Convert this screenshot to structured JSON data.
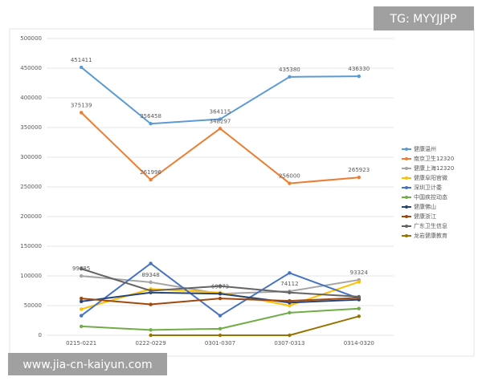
{
  "chart_data": {
    "type": "line",
    "categories": [
      "0215-0221",
      "0222-0229",
      "0301-0307",
      "0307-0313",
      "0314-0320"
    ],
    "ylim": [
      0,
      500000
    ],
    "yticks": [
      0,
      50000,
      100000,
      150000,
      200000,
      250000,
      300000,
      350000,
      400000,
      450000,
      500000
    ],
    "grid": true,
    "legend": "right",
    "series": [
      {
        "name": "健康温州",
        "color": "#5b9bd5",
        "values": [
          451411,
          356458,
          364115,
          435380,
          436330
        ],
        "show_labels": true
      },
      {
        "name": "南京卫生12320",
        "color": "#ed7d31",
        "values": [
          375139,
          261996,
          348297,
          256000,
          265923
        ],
        "show_labels": true
      },
      {
        "name": "健康上海12320",
        "color": "#a5a5a5",
        "values": [
          99885,
          89348,
          69873,
          74112,
          93324
        ],
        "show_labels": true
      },
      {
        "name": "健康阜阳官微",
        "color": "#ffc000",
        "values": [
          44000,
          78000,
          72000,
          50000,
          90000
        ]
      },
      {
        "name": "深圳卫计委",
        "color": "#4472c4",
        "values": [
          33000,
          121000,
          33000,
          105000,
          62000
        ]
      },
      {
        "name": "中国疾控动态",
        "color": "#70ad47",
        "values": [
          15000,
          9000,
          11000,
          38000,
          45000
        ]
      },
      {
        "name": "健康佛山",
        "color": "#264478",
        "values": [
          57000,
          72000,
          70000,
          55000,
          60000
        ]
      },
      {
        "name": "健康浙江",
        "color": "#9e480e",
        "values": [
          62000,
          52000,
          62000,
          58000,
          63000
        ]
      },
      {
        "name": "广东卫生信息",
        "color": "#636363",
        "values": [
          112000,
          75000,
          83000,
          72000,
          65000
        ]
      },
      {
        "name": "龙岩健康教育",
        "color": "#997300",
        "values": [
          null,
          0,
          0,
          0,
          32000
        ]
      }
    ]
  },
  "watermarks": {
    "top": "TG: MYYJJPP",
    "bottom": "www.jia-cn-kaiyun.com"
  }
}
